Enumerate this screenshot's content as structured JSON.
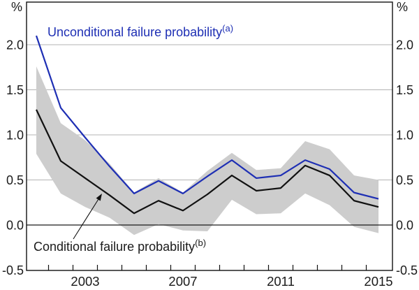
{
  "chart_data": {
    "type": "line",
    "title": "",
    "unit": "%",
    "xlabel": "",
    "ylabel": "%",
    "ylim": [
      -0.5,
      2.47
    ],
    "grid": true,
    "x": [
      2001,
      2002,
      2003,
      2004,
      2005,
      2006,
      2007,
      2008,
      2009,
      2010,
      2011,
      2012,
      2013,
      2014,
      2015
    ],
    "x_tick_labels": [
      "2003",
      "2007",
      "2011",
      "2015"
    ],
    "y_ticks": [
      2.0,
      1.5,
      1.0,
      0.5,
      0.0,
      -0.5
    ],
    "series": [
      {
        "name": "Unconditional failure probability",
        "superscript": "(a)",
        "color": "#1e2fb4",
        "values": [
          2.1,
          1.3,
          0.97,
          0.65,
          0.35,
          0.49,
          0.35,
          0.54,
          0.72,
          0.52,
          0.55,
          0.72,
          0.62,
          0.36,
          0.29
        ]
      },
      {
        "name": "Conditional failure probability",
        "superscript": "(b)",
        "color": "#111111",
        "values": [
          1.28,
          0.71,
          0.52,
          0.33,
          0.13,
          0.27,
          0.16,
          0.34,
          0.55,
          0.38,
          0.41,
          0.66,
          0.55,
          0.27,
          0.2
        ]
      }
    ],
    "band": {
      "name": "confidence-band",
      "color": "#cdcdcd",
      "upper": [
        1.76,
        1.13,
        0.94,
        0.68,
        0.36,
        0.52,
        0.36,
        0.6,
        0.8,
        0.61,
        0.63,
        0.93,
        0.84,
        0.55,
        0.5
      ],
      "lower": [
        0.79,
        0.35,
        0.2,
        0.08,
        -0.11,
        0.01,
        -0.06,
        -0.07,
        0.28,
        0.12,
        0.13,
        0.35,
        0.22,
        -0.02,
        -0.09
      ]
    },
    "colors": {
      "grid": "#b3b3b3",
      "zero_line": "#1a1a1a",
      "frame": "#111111"
    }
  }
}
